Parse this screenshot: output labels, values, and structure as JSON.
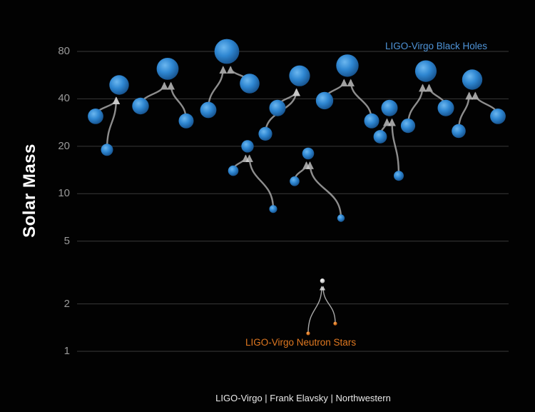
{
  "axis": {
    "ylabel": "Solar Mass"
  },
  "legend": {
    "black_holes_label": "LIGO-Virgo Black Holes",
    "neutron_stars_label": "LIGO-Virgo Neutron Stars"
  },
  "caption": "LIGO-Virgo | Frank Elavsky | Northwestern",
  "colors": {
    "background": "#020202",
    "gridline": "#3a3a3a",
    "tick_label": "#9a9a9a",
    "black_hole": "#2f87d2",
    "neutron_star": "#e07820",
    "remnant": "#cccccc",
    "arrow": "#bcbcbc",
    "bh_legend_text": "#4f94d8",
    "ns_legend_text": "#e07820"
  },
  "chart_data": {
    "type": "scatter",
    "yscale": "log",
    "ylabel": "Solar Mass",
    "ylim": [
      1,
      100
    ],
    "yticks": [
      1,
      2,
      5,
      10,
      20,
      40,
      80
    ],
    "grid": true,
    "legend_position": "top-right",
    "description": "Binary merger events: two component masses with arrows merging into a final mass, plotted on a log solar-mass axis",
    "series": [
      {
        "name": "LIGO-Virgo Black Holes",
        "color": "#2f87d2",
        "events": [
          {
            "m1": 31,
            "m2": 19,
            "final_mass": 49,
            "x_m1": 134,
            "x_m2": 150,
            "x_final": 167
          },
          {
            "m1": 36,
            "m2": 29,
            "final_mass": 62,
            "x_m1": 197,
            "x_m2": 261,
            "x_final": 235
          },
          {
            "m1": 34,
            "m2": 50,
            "final_mass": 80,
            "x_m1": 292,
            "x_m2": 350,
            "x_final": 318
          },
          {
            "m1": 14,
            "m2": 8,
            "final_mass": 20,
            "x_m1": 327,
            "x_m2": 383,
            "x_final": 347
          },
          {
            "m1": 24,
            "m2": 35,
            "final_mass": 56,
            "x_m1": 372,
            "x_m2": 389,
            "x_final": 420
          },
          {
            "m1": 12,
            "m2": 7,
            "final_mass": 18,
            "x_m1": 413,
            "x_m2": 478,
            "x_final": 432
          },
          {
            "m1": 39,
            "m2": 29,
            "final_mass": 65,
            "x_m1": 455,
            "x_m2": 521,
            "x_final": 487
          },
          {
            "m1": 23,
            "m2": 13,
            "final_mass": 35,
            "x_m1": 533,
            "x_m2": 559,
            "x_final": 546
          },
          {
            "m1": 27,
            "m2": 35,
            "final_mass": 60,
            "x_m1": 572,
            "x_m2": 625,
            "x_final": 597
          },
          {
            "m1": 25,
            "m2": 31,
            "final_mass": 53,
            "x_m1": 643,
            "x_m2": 698,
            "x_final": 662
          }
        ]
      },
      {
        "name": "LIGO-Virgo Neutron Stars",
        "color": "#e07820",
        "events": [
          {
            "m1": 1.5,
            "m2": 1.3,
            "final_mass": 2.8,
            "x_m1": 470,
            "x_m2": 432,
            "x_final": 452
          }
        ]
      }
    ]
  }
}
